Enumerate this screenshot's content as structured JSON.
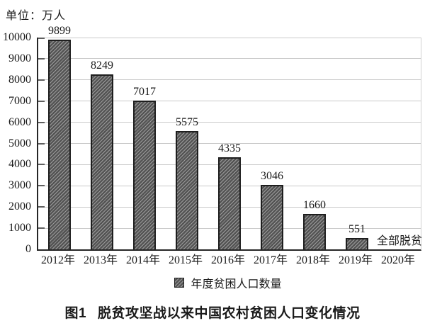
{
  "figure": {
    "unit_label": "单位：万人",
    "caption": {
      "figure_no": "图1",
      "title": "脱贫攻坚战以来中国农村贫困人口变化情况"
    }
  },
  "chart_data": {
    "type": "bar",
    "title": "图1 脱贫攻坚战以来中国农村贫困人口变化情况",
    "unit": "万人",
    "categories": [
      "2012年",
      "2013年",
      "2014年",
      "2015年",
      "2016年",
      "2017年",
      "2018年",
      "2019年",
      "2020年"
    ],
    "values": [
      9899,
      8249,
      7017,
      5575,
      4335,
      3046,
      1660,
      551,
      0
    ],
    "data_labels": [
      "9899",
      "8249",
      "7017",
      "5575",
      "4335",
      "3046",
      "1660",
      "551",
      ""
    ],
    "annotations": [
      {
        "category": "2020年",
        "text": "全部脱贫"
      }
    ],
    "legend_entries": [
      "年度贫困人口数量"
    ],
    "legend_position": "bottom",
    "xlabel": "",
    "ylabel": "单位：万人",
    "ylim": [
      0,
      10000
    ],
    "yticks": [
      0,
      1000,
      2000,
      3000,
      4000,
      5000,
      6000,
      7000,
      8000,
      9000,
      10000
    ],
    "grid": true,
    "bar_style": {
      "fill": "#545454",
      "hatch": "/",
      "hatch_color": "#9c9c9c",
      "border": "#1e1e1e"
    },
    "gridline_color": "#c9c9c9",
    "axis_color": "#262626"
  }
}
